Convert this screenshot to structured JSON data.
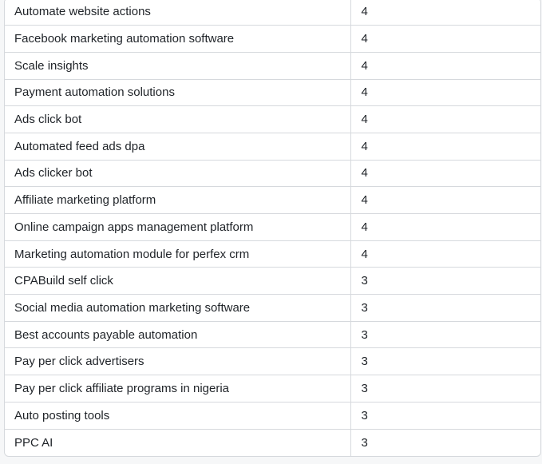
{
  "table": {
    "rows": [
      {
        "keyword": "Automate website actions",
        "count": "4"
      },
      {
        "keyword": "Facebook marketing automation software",
        "count": "4"
      },
      {
        "keyword": "Scale insights",
        "count": "4"
      },
      {
        "keyword": "Payment automation solutions",
        "count": "4"
      },
      {
        "keyword": "Ads click bot",
        "count": "4"
      },
      {
        "keyword": "Automated feed ads dpa",
        "count": "4"
      },
      {
        "keyword": "Ads clicker bot",
        "count": "4"
      },
      {
        "keyword": "Affiliate marketing platform",
        "count": "4"
      },
      {
        "keyword": "Online campaign apps management platform",
        "count": "4"
      },
      {
        "keyword": "Marketing automation module for perfex crm",
        "count": "4"
      },
      {
        "keyword": "CPABuild self click",
        "count": "3"
      },
      {
        "keyword": "Social media automation marketing software",
        "count": "3"
      },
      {
        "keyword": "Best accounts payable automation",
        "count": "3"
      },
      {
        "keyword": "Pay per click advertisers",
        "count": "3"
      },
      {
        "keyword": "Pay per click affiliate programs in nigeria",
        "count": "3"
      },
      {
        "keyword": "Auto posting tools",
        "count": "3"
      },
      {
        "keyword": "PPC AI",
        "count": "3"
      }
    ]
  }
}
